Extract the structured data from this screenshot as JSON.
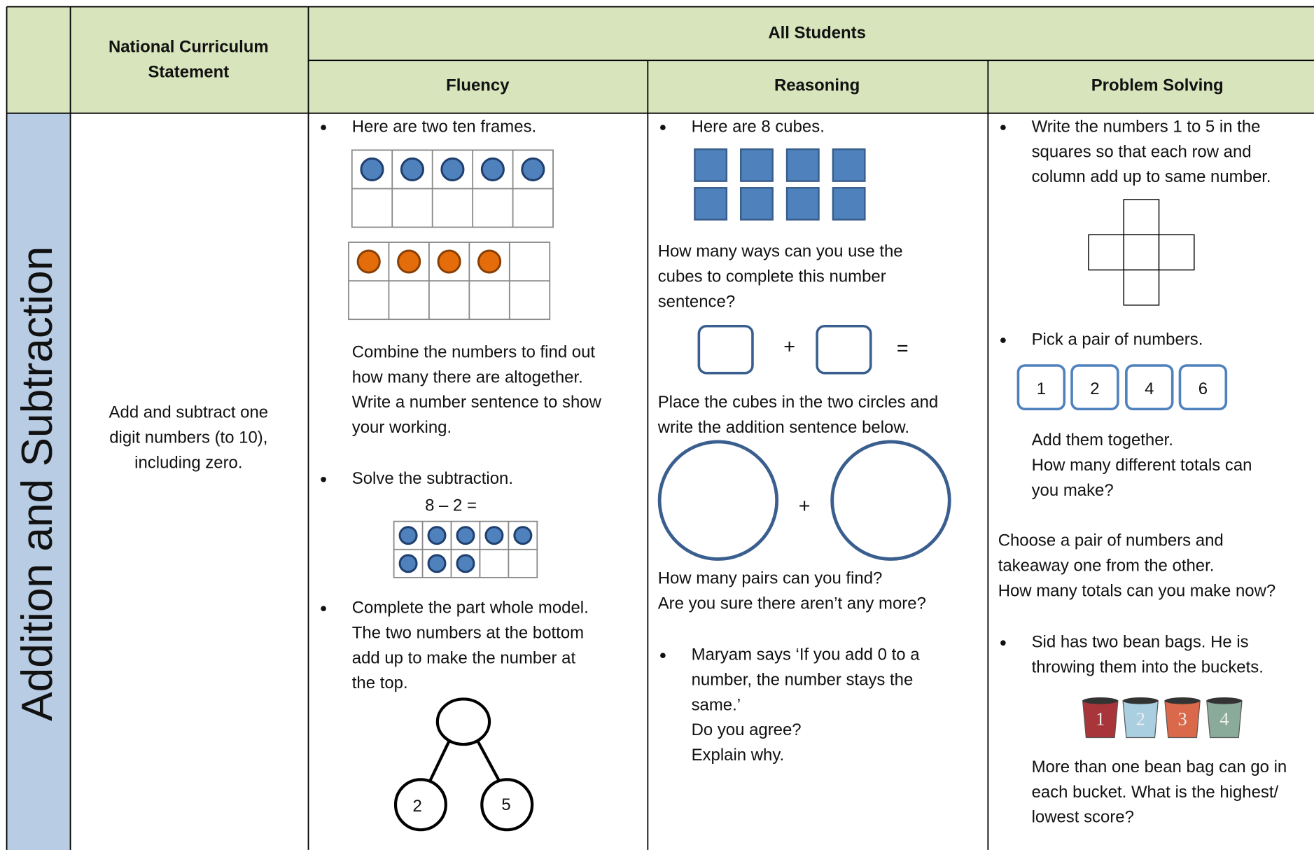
{
  "side_label": "Addition and Subtraction",
  "header": {
    "statement": [
      "National Curriculum",
      "Statement"
    ],
    "all_students": "All Students",
    "fluency": "Fluency",
    "reasoning": "Reasoning",
    "problem_solving": "Problem Solving"
  },
  "statement": [
    "Add and subtract one",
    "digit numbers (to 10),",
    "including zero."
  ],
  "fluency": {
    "item1": [
      "Here are two ten frames."
    ],
    "item1_text": [
      "Combine the numbers to find out",
      "how many there are altogether.",
      "Write a number sentence to show",
      "your working."
    ],
    "item2": [
      "Solve the subtraction."
    ],
    "subtraction": "8 – 2 =",
    "item3": [
      "Complete the part whole model.",
      "The two numbers at the bottom",
      "add up to make the number at",
      "the top."
    ],
    "part_whole": [
      "2",
      "5"
    ]
  },
  "reasoning": {
    "item1": [
      "Here are 8 cubes."
    ],
    "text1": [
      "How many ways can you use the",
      "cubes to complete this number",
      "sentence?"
    ],
    "plus": "+",
    "equals": "=",
    "text2": [
      "Place the cubes in the two circles and",
      "write the addition sentence below."
    ],
    "text3": [
      "How many pairs can you find?",
      "Are you sure there aren’t any more?"
    ],
    "item2": [
      "Maryam says ‘If you add 0 to a",
      "number, the number stays the",
      "same.’",
      "Do you agree?",
      "Explain why."
    ]
  },
  "problem_solving": {
    "item1": [
      "Write the numbers 1 to 5 in the",
      "squares so that each row and",
      "column add up to same number."
    ],
    "item2": [
      "Pick a pair of numbers."
    ],
    "numbers": [
      "1",
      "2",
      "4",
      "6"
    ],
    "text1": [
      "Add them together.",
      "How many different totals can",
      "you make?"
    ],
    "text2": [
      "Choose a pair of numbers and",
      "takeaway one from the other.",
      "How many totals can you make now?"
    ],
    "item3": [
      "Sid has two bean bags. He is",
      "throwing them into the buckets."
    ],
    "buckets": [
      "1",
      "2",
      "3",
      "4"
    ],
    "text3": [
      "More than one bean bag can go in",
      "each bucket. What is the highest/",
      "lowest score?"
    ]
  }
}
